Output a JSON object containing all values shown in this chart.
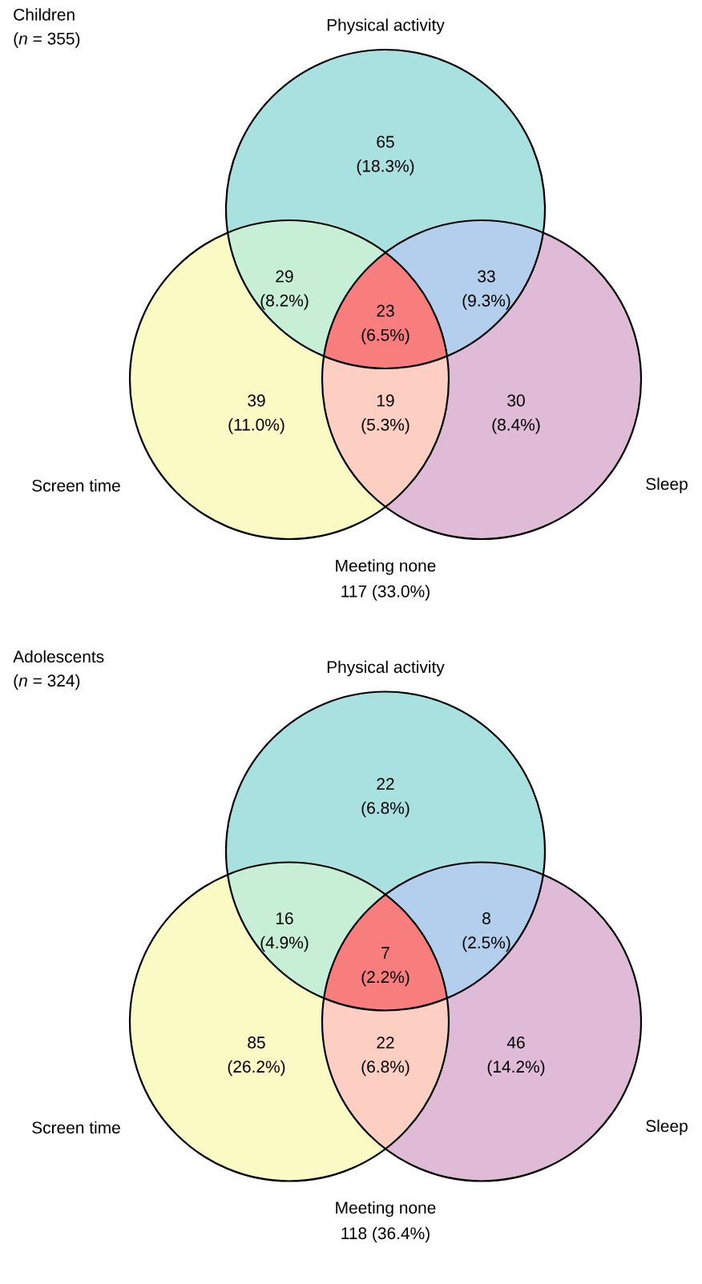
{
  "chart_data": [
    {
      "type": "other",
      "title": "Children",
      "subtitle": "(*n* = 355)",
      "categories": [
        null,
        null,
        null,
        null,
        null,
        null,
        null
      ],
      "values": [
        65,
        29,
        33,
        23,
        39,
        19,
        30
      ],
      "data_labels": true,
      "colors": [
        "#a9e1e1",
        "#c6efd6",
        "#b4cfee",
        "#f87d7d",
        "#fafac4",
        "#fdcec2",
        "#dfbbd7"
      ],
      "annotations": [
        "Physical activity",
        "Screen time",
        "Sleep",
        "Meeting none",
        "117 (33.0%)",
        "(18.3%)",
        "(8.2%)",
        "(9.3%)",
        "(6.5%)",
        "(11.0%)",
        "(5.3%)",
        "(8.4%)"
      ]
    },
    {
      "type": "other",
      "title": "Adolescents",
      "subtitle": "(*n* = 324)",
      "categories": [
        null,
        null,
        null,
        null,
        null,
        null,
        null
      ],
      "values": [
        22,
        16,
        8,
        7,
        85,
        22,
        46
      ],
      "data_labels": true,
      "colors": [
        "#a9e1e1",
        "#c6efd6",
        "#b4cfee",
        "#f87d7d",
        "#fafac4",
        "#fdcec2",
        "#dfbbd7"
      ],
      "annotations": [
        "Physical activity",
        "Screen time",
        "Sleep",
        "Meeting none",
        "118 (36.4%)",
        "(6.8%)",
        "(4.9%)",
        "(2.5%)",
        "(2.2%)",
        "(26.2%)",
        "(6.8%)",
        "(14.2%)"
      ]
    }
  ]
}
